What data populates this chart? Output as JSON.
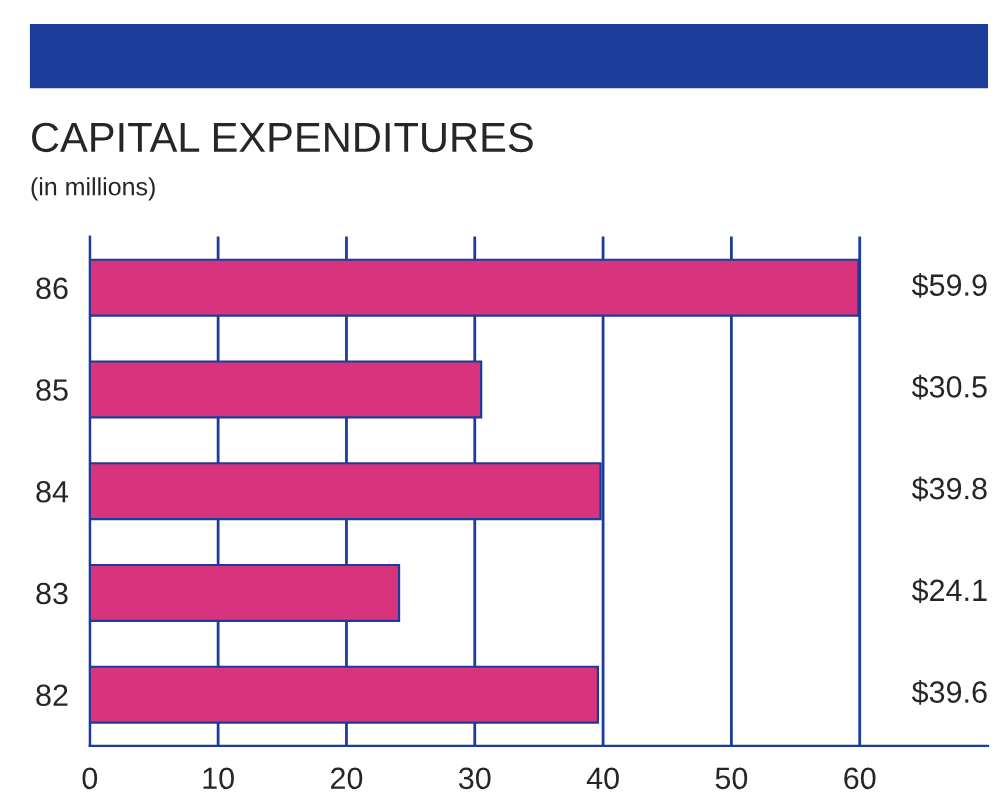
{
  "chart_data": {
    "type": "bar",
    "orientation": "horizontal",
    "title": "CAPITAL EXPENDITURES",
    "subtitle": "(in millions)",
    "categories": [
      "86",
      "85",
      "84",
      "83",
      "82"
    ],
    "values": [
      59.9,
      30.5,
      39.8,
      24.1,
      39.6
    ],
    "value_labels": [
      "$59.9",
      "$30.5",
      "$39.8",
      "$24.1",
      "$39.6"
    ],
    "color": "#d8347e",
    "xlim": [
      0,
      70
    ],
    "xticks": [
      0,
      10,
      20,
      30,
      40,
      50,
      60
    ],
    "grid": "x"
  }
}
